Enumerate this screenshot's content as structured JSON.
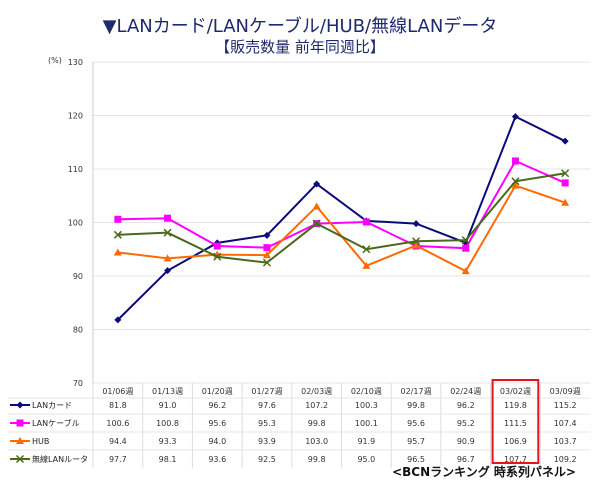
{
  "title": "▼LANカード/LANケーブル/HUB/無線LANデータ",
  "subtitle": "【販売数量 前年同週比】",
  "unit": "(%)",
  "credit": "<BCNランキング 時系列パネル>",
  "chart_data": {
    "type": "line",
    "title": "▼LANカード/LANケーブル/HUB/無線LANデータ 【販売数量 前年同週比】",
    "ylabel": "(%)",
    "ylim": [
      70,
      130
    ],
    "yticks": [
      70,
      80,
      90,
      100,
      110,
      120,
      130
    ],
    "categories": [
      "01/06週",
      "01/13週",
      "01/20週",
      "01/27週",
      "02/03週",
      "02/10週",
      "02/17週",
      "02/24週",
      "03/02週",
      "03/09週"
    ],
    "highlight_category": "03/02週",
    "highlight_color": "#e8141b",
    "series": [
      {
        "name": "LANカード",
        "color": "#0a0a7a",
        "marker": "diamond",
        "values": [
          81.8,
          91.0,
          96.2,
          97.6,
          107.2,
          100.3,
          99.8,
          96.2,
          119.8,
          115.2
        ]
      },
      {
        "name": "LANケーブル",
        "color": "#ff00ff",
        "marker": "square",
        "values": [
          100.6,
          100.8,
          95.6,
          95.3,
          99.8,
          100.1,
          95.6,
          95.2,
          111.5,
          107.4
        ]
      },
      {
        "name": "HUB",
        "color": "#ff6a00",
        "marker": "triangle",
        "values": [
          94.4,
          93.3,
          94.0,
          93.9,
          103.0,
          91.9,
          95.7,
          90.9,
          106.9,
          103.7
        ]
      },
      {
        "name": "無線LANルータ",
        "color": "#4a6a1a",
        "marker": "x",
        "values": [
          97.7,
          98.1,
          93.6,
          92.5,
          99.8,
          95.0,
          96.5,
          96.7,
          107.7,
          109.2
        ]
      }
    ]
  }
}
